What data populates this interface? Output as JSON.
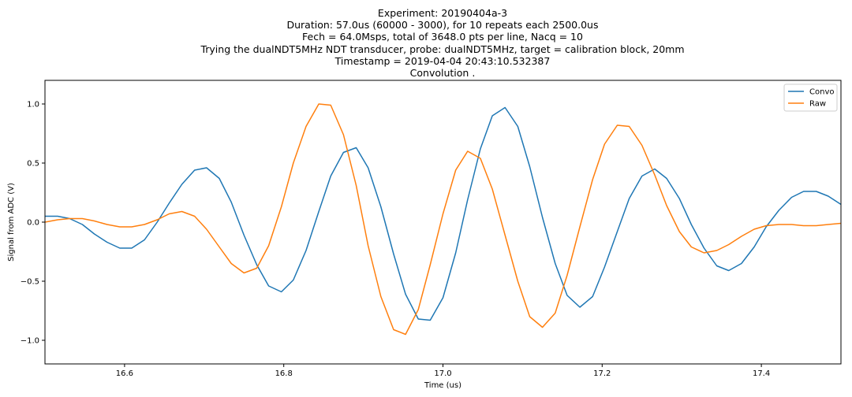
{
  "chart_data": {
    "type": "line",
    "title_lines": [
      "Experiment: 20190404a-3",
      "Duration: 57.0us (60000 - 3000), for 10 repeats each 2500.0us",
      "Fech = 64.0Msps, total of 3648.0 pts per line, Nacq = 10",
      "Trying the dualNDT5MHz NDT transducer, probe: dualNDT5MHz, target = calibration block, 20mm",
      "Timestamp = 2019-04-04 20:43:10.532387",
      "Convolution ."
    ],
    "xlabel": "Time (us)",
    "ylabel": "Signal from ADC (V)",
    "xlim": [
      16.5,
      17.5
    ],
    "ylim": [
      -1.2,
      1.2
    ],
    "xticks": [
      16.6,
      16.8,
      17.0,
      17.2,
      17.4
    ],
    "xtick_labels": [
      "16.6",
      "16.8",
      "17.0",
      "17.2",
      "17.4"
    ],
    "yticks": [
      1.0,
      0.5,
      0.0,
      -0.5,
      -1.0
    ],
    "ytick_labels": [
      "1.0",
      "0.5",
      "0.0",
      "−0.5",
      "−1.0"
    ],
    "grid": false,
    "legend_position": "top-right",
    "series": [
      {
        "name": "Convo",
        "color": "#1f77b4",
        "x": [
          16.5,
          16.516,
          16.531,
          16.547,
          16.562,
          16.578,
          16.594,
          16.609,
          16.625,
          16.641,
          16.656,
          16.672,
          16.688,
          16.703,
          16.719,
          16.734,
          16.75,
          16.766,
          16.781,
          16.797,
          16.812,
          16.828,
          16.844,
          16.859,
          16.875,
          16.891,
          16.906,
          16.922,
          16.938,
          16.953,
          16.969,
          16.984,
          17.0,
          17.016,
          17.031,
          17.047,
          17.062,
          17.078,
          17.094,
          17.109,
          17.125,
          17.141,
          17.156,
          17.172,
          17.188,
          17.203,
          17.219,
          17.234,
          17.25,
          17.266,
          17.281,
          17.297,
          17.312,
          17.328,
          17.344,
          17.359,
          17.375,
          17.391,
          17.406,
          17.422,
          17.438,
          17.453,
          17.469,
          17.484,
          17.5
        ],
        "y": [
          0.05,
          0.05,
          0.03,
          -0.02,
          -0.1,
          -0.17,
          -0.22,
          -0.22,
          -0.15,
          0.0,
          0.16,
          0.32,
          0.44,
          0.46,
          0.37,
          0.17,
          -0.11,
          -0.36,
          -0.54,
          -0.59,
          -0.49,
          -0.24,
          0.09,
          0.39,
          0.59,
          0.63,
          0.46,
          0.13,
          -0.27,
          -0.61,
          -0.82,
          -0.83,
          -0.64,
          -0.26,
          0.19,
          0.62,
          0.9,
          0.97,
          0.81,
          0.47,
          0.04,
          -0.35,
          -0.62,
          -0.72,
          -0.63,
          -0.38,
          -0.08,
          0.2,
          0.39,
          0.45,
          0.37,
          0.2,
          -0.02,
          -0.22,
          -0.37,
          -0.41,
          -0.35,
          -0.21,
          -0.04,
          0.1,
          0.21,
          0.26,
          0.26,
          0.22,
          0.15
        ]
      },
      {
        "name": "Raw",
        "color": "#ff7f0e",
        "x": [
          16.5,
          16.516,
          16.531,
          16.547,
          16.562,
          16.578,
          16.594,
          16.609,
          16.625,
          16.641,
          16.656,
          16.672,
          16.688,
          16.703,
          16.719,
          16.734,
          16.75,
          16.766,
          16.781,
          16.797,
          16.812,
          16.828,
          16.844,
          16.859,
          16.875,
          16.891,
          16.906,
          16.922,
          16.938,
          16.953,
          16.969,
          16.984,
          17.0,
          17.016,
          17.031,
          17.047,
          17.062,
          17.078,
          17.094,
          17.109,
          17.125,
          17.141,
          17.156,
          17.172,
          17.188,
          17.203,
          17.219,
          17.234,
          17.25,
          17.266,
          17.281,
          17.297,
          17.312,
          17.328,
          17.344,
          17.359,
          17.375,
          17.391,
          17.406,
          17.422,
          17.438,
          17.453,
          17.469,
          17.484,
          17.5
        ],
        "y": [
          0.0,
          0.02,
          0.03,
          0.03,
          0.01,
          -0.02,
          -0.04,
          -0.04,
          -0.02,
          0.02,
          0.07,
          0.09,
          0.05,
          -0.06,
          -0.21,
          -0.35,
          -0.43,
          -0.39,
          -0.2,
          0.13,
          0.5,
          0.81,
          1.0,
          0.99,
          0.74,
          0.31,
          -0.2,
          -0.63,
          -0.91,
          -0.95,
          -0.74,
          -0.36,
          0.07,
          0.44,
          0.6,
          0.54,
          0.28,
          -0.11,
          -0.5,
          -0.8,
          -0.89,
          -0.77,
          -0.45,
          -0.04,
          0.36,
          0.66,
          0.82,
          0.81,
          0.65,
          0.4,
          0.14,
          -0.08,
          -0.21,
          -0.26,
          -0.24,
          -0.19,
          -0.12,
          -0.06,
          -0.03,
          -0.02,
          -0.02,
          -0.03,
          -0.03,
          -0.02,
          -0.01
        ]
      }
    ]
  }
}
